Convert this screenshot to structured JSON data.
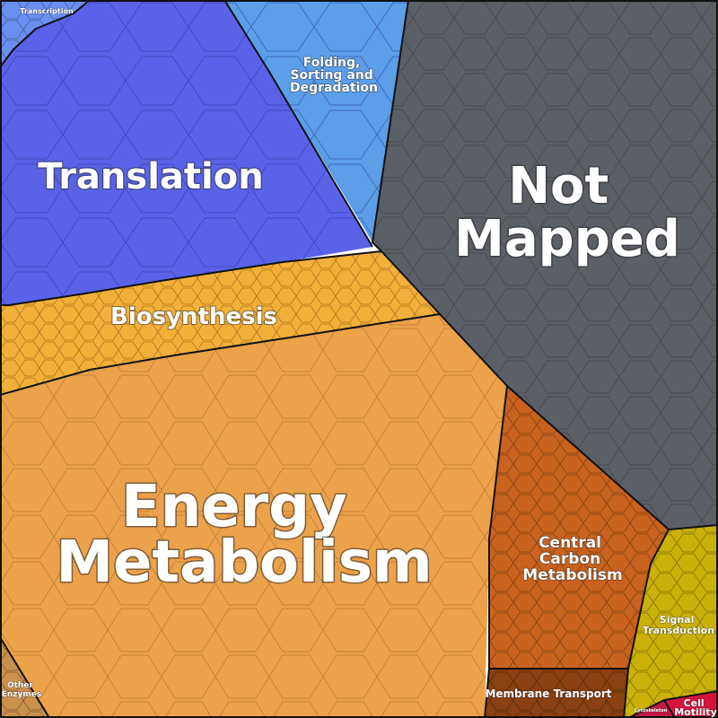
{
  "chart_data": {
    "type": "treemap",
    "colors": {
      "not_mapped": "#5b5f66",
      "translation": "#5a63e8",
      "folding": "#5c9ee8",
      "transcription": "#6a8ff0",
      "biosynthesis": "#f2b03a",
      "energy_metabolism": "#eca24a",
      "central_carbon": "#c8621e",
      "membrane_transport": "#8a4010",
      "signal_transduction": "#c9b10a",
      "cell_motility": "#d4143c",
      "cytoskeleton": "#c31845",
      "other_enzymes": "#c9914c"
    },
    "cells": [
      {
        "id": "not_mapped",
        "label_lines": [
          "Not",
          "Mapped"
        ]
      },
      {
        "id": "translation",
        "label_lines": [
          "Translation"
        ]
      },
      {
        "id": "folding",
        "label_lines": [
          "Folding,",
          "Sorting and",
          "Degradation"
        ]
      },
      {
        "id": "transcription",
        "label_lines": [
          "Transcription"
        ]
      },
      {
        "id": "biosynthesis",
        "label_lines": [
          "Biosynthesis"
        ]
      },
      {
        "id": "energy_metabolism",
        "label_lines": [
          "Energy",
          "Metabolism"
        ]
      },
      {
        "id": "central_carbon",
        "label_lines": [
          "Central",
          "Carbon",
          "Metabolism"
        ]
      },
      {
        "id": "membrane_transport",
        "label_lines": [
          "Membrane Transport"
        ]
      },
      {
        "id": "signal_transduction",
        "label_lines": [
          "Signal",
          "Transduction"
        ]
      },
      {
        "id": "cell_motility",
        "label_lines": [
          "Cell",
          "Motility"
        ]
      },
      {
        "id": "cytoskeleton",
        "label_lines": [
          "Cytoskeleton"
        ]
      },
      {
        "id": "other_enzymes",
        "label_lines": [
          "Other",
          "Enzymes"
        ]
      }
    ]
  }
}
